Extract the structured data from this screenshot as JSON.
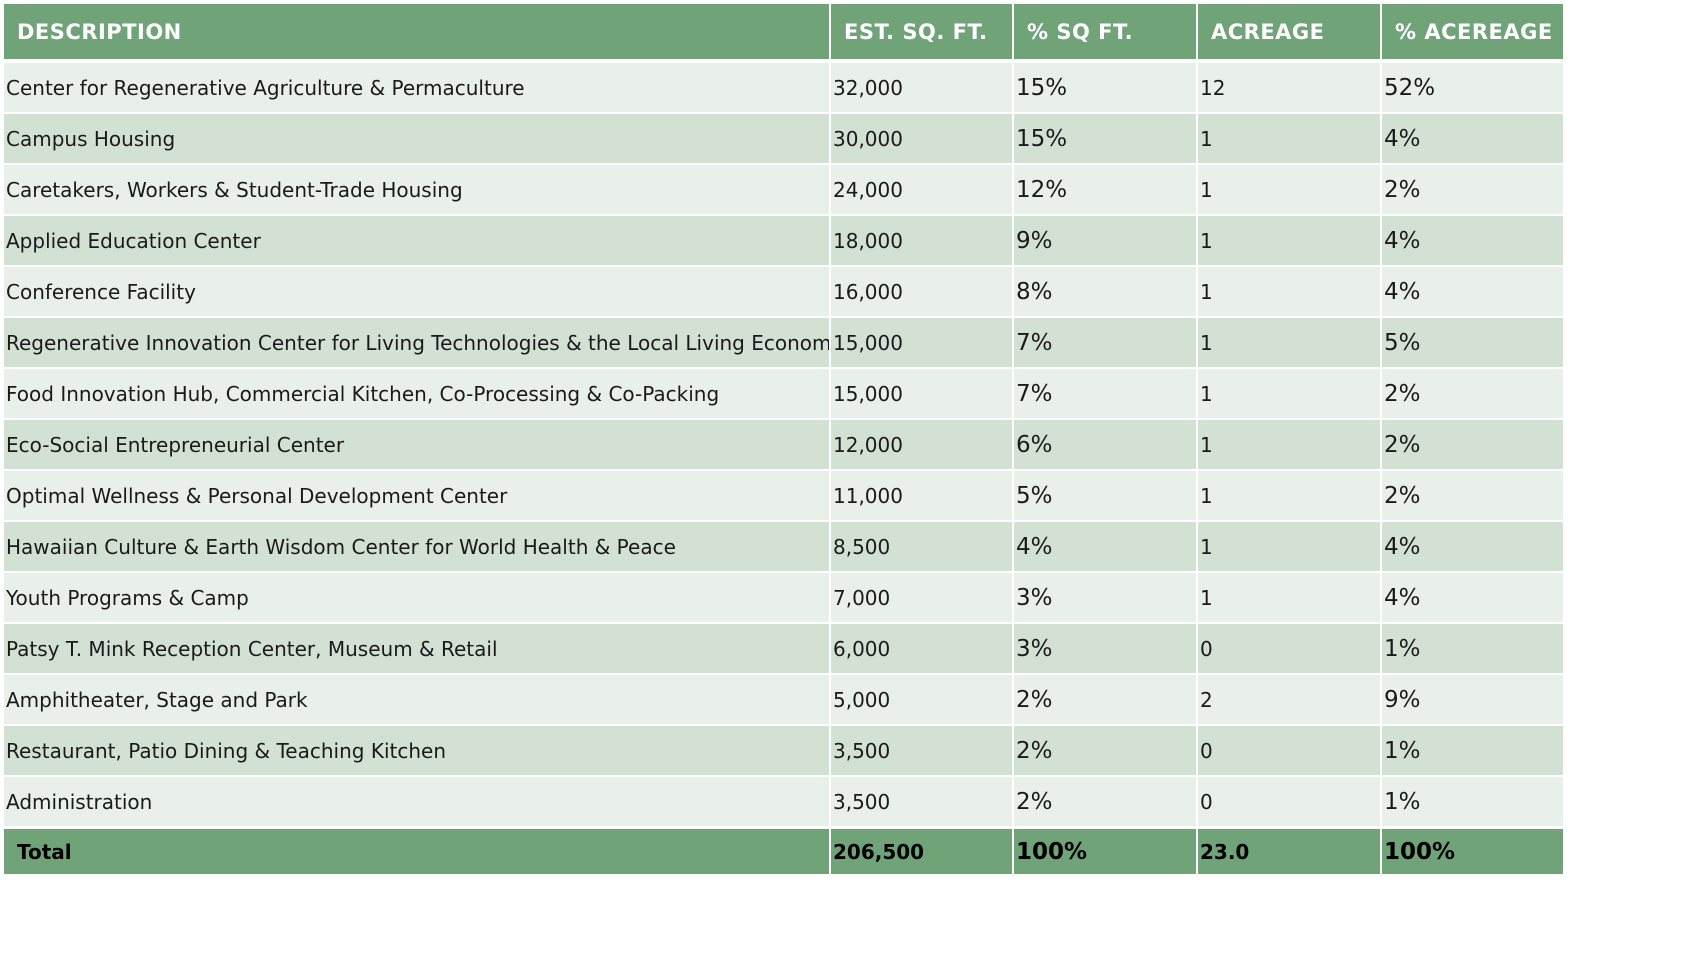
{
  "headers": {
    "description": "DESCRIPTION",
    "est_sq_ft": "EST. SQ. FT.",
    "pct_sq_ft": "% SQ FT.",
    "acreage": "ACREAGE",
    "pct_acreage": "% ACEREAGE"
  },
  "rows": [
    {
      "description": "Center for Regenerative Agriculture & Permaculture",
      "sq_ft": "32,000",
      "pct_sq_ft": "15%",
      "acreage": "12",
      "pct_acreage": "52%"
    },
    {
      "description": "Campus Housing",
      "sq_ft": "30,000",
      "pct_sq_ft": "15%",
      "acreage": "1",
      "pct_acreage": "4%"
    },
    {
      "description": "Caretakers, Workers & Student-Trade Housing",
      "sq_ft": "24,000",
      "pct_sq_ft": "12%",
      "acreage": "1",
      "pct_acreage": "2%"
    },
    {
      "description": "Applied Education Center",
      "sq_ft": "18,000",
      "pct_sq_ft": "9%",
      "acreage": "1",
      "pct_acreage": "4%"
    },
    {
      "description": "Conference Facility",
      "sq_ft": "16,000",
      "pct_sq_ft": "8%",
      "acreage": "1",
      "pct_acreage": "4%"
    },
    {
      "description": "Regenerative Innovation Center for Living Technologies & the Local Living Economy",
      "sq_ft": "15,000",
      "pct_sq_ft": "7%",
      "acreage": "1",
      "pct_acreage": "5%"
    },
    {
      "description": "Food Innovation Hub, Commercial Kitchen, Co-Processing & Co-Packing",
      "sq_ft": "15,000",
      "pct_sq_ft": "7%",
      "acreage": "1",
      "pct_acreage": "2%"
    },
    {
      "description": "Eco-Social Entrepreneurial Center",
      "sq_ft": "12,000",
      "pct_sq_ft": "6%",
      "acreage": "1",
      "pct_acreage": "2%"
    },
    {
      "description": "Optimal Wellness & Personal Development Center",
      "sq_ft": "11,000",
      "pct_sq_ft": "5%",
      "acreage": "1",
      "pct_acreage": "2%"
    },
    {
      "description": "Hawaiian Culture & Earth Wisdom Center for World Health & Peace",
      "sq_ft": "8,500",
      "pct_sq_ft": "4%",
      "acreage": "1",
      "pct_acreage": "4%"
    },
    {
      "description": "Youth Programs & Camp",
      "sq_ft": "7,000",
      "pct_sq_ft": "3%",
      "acreage": "1",
      "pct_acreage": "4%"
    },
    {
      "description": "Patsy T. Mink Reception Center, Museum & Retail",
      "sq_ft": "6,000",
      "pct_sq_ft": "3%",
      "acreage": "0",
      "pct_acreage": "1%"
    },
    {
      "description": "Amphitheater, Stage and Park",
      "sq_ft": "5,000",
      "pct_sq_ft": "2%",
      "acreage": "2",
      "pct_acreage": "9%"
    },
    {
      "description": "Restaurant, Patio Dining & Teaching Kitchen",
      "sq_ft": "3,500",
      "pct_sq_ft": "2%",
      "acreage": "0",
      "pct_acreage": "1%"
    },
    {
      "description": "Administration",
      "sq_ft": "3,500",
      "pct_sq_ft": "2%",
      "acreage": "0",
      "pct_acreage": "1%"
    }
  ],
  "total": {
    "label": "Total",
    "sq_ft": "206,500",
    "pct_sq_ft": "100%",
    "acreage": "23.0",
    "pct_acreage": "100%"
  },
  "colors": {
    "header_bg": "#70a478",
    "row_light": "#e9efe9",
    "row_dark": "#d3e0d4"
  }
}
